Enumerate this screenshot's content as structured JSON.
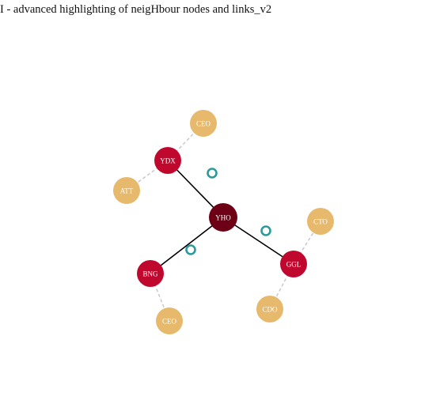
{
  "page": {
    "title": "I - advanced highlighting of neigHbour nodes and links_v2"
  },
  "colors": {
    "center": "#6e0016",
    "primary": "#c0082e",
    "secondary": "#e6b96d",
    "solid_link": "#000000",
    "dashed_link": "#c8c8c8",
    "connector_stroke": "#2a9a9a",
    "label": "#ffffff"
  },
  "graph": {
    "nodes": [
      {
        "id": "YHO",
        "label": "YHO",
        "kind": "center"
      },
      {
        "id": "YDX",
        "label": "YDX",
        "kind": "primary"
      },
      {
        "id": "BNG",
        "label": "BNG",
        "kind": "primary"
      },
      {
        "id": "GGL",
        "label": "GGL",
        "kind": "primary"
      },
      {
        "id": "CEO1",
        "label": "CEO",
        "kind": "secondary"
      },
      {
        "id": "ATT",
        "label": "ATT",
        "kind": "secondary"
      },
      {
        "id": "CEO2",
        "label": "CEO",
        "kind": "secondary"
      },
      {
        "id": "CTO",
        "label": "CTO",
        "kind": "secondary"
      },
      {
        "id": "CDO",
        "label": "CDO",
        "kind": "secondary"
      }
    ],
    "links": [
      {
        "source": "YHO",
        "target": "YDX",
        "style": "solid",
        "connector": true
      },
      {
        "source": "YHO",
        "target": "BNG",
        "style": "solid",
        "connector": true
      },
      {
        "source": "YHO",
        "target": "GGL",
        "style": "solid",
        "connector": true
      },
      {
        "source": "YDX",
        "target": "CEO1",
        "style": "dashed",
        "connector": false
      },
      {
        "source": "YDX",
        "target": "ATT",
        "style": "dashed",
        "connector": false
      },
      {
        "source": "BNG",
        "target": "CEO2",
        "style": "dashed",
        "connector": false
      },
      {
        "source": "GGL",
        "target": "CTO",
        "style": "dashed",
        "connector": false
      },
      {
        "source": "GGL",
        "target": "CDO",
        "style": "dashed",
        "connector": false
      }
    ]
  }
}
